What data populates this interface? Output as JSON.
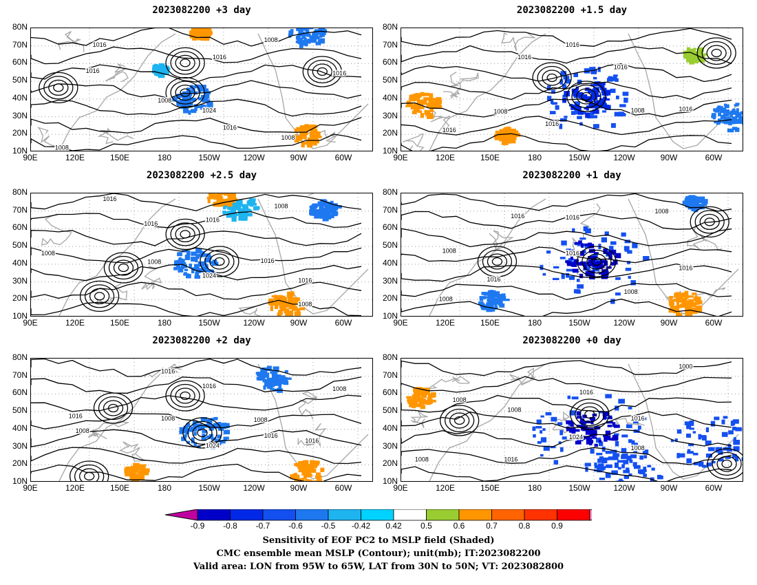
{
  "panels": [
    {
      "title": "2023082200  +3  day",
      "contours": [
        "1016",
        "1016",
        "1016",
        "1008",
        "1008",
        "1024",
        "1016",
        "1008",
        "1016",
        "1008"
      ]
    },
    {
      "title": "2023082200  +1.5  day",
      "contours": [
        "1016",
        "1016",
        "1016",
        "1016",
        "1008",
        "1016",
        "1008",
        "1016"
      ]
    },
    {
      "title": "2023082200  +2.5  day",
      "contours": [
        "1016",
        "1016",
        "1016",
        "1008",
        "1008",
        "1024",
        "1016",
        "1016",
        "1008",
        "1008"
      ]
    },
    {
      "title": "2023082200  +1  day",
      "contours": [
        "1016",
        "1016",
        "1008",
        "1008",
        "1016",
        "1016",
        "1008",
        "1008",
        "1016"
      ]
    },
    {
      "title": "2023082200  +2  day",
      "contours": [
        "1016",
        "1016",
        "1016",
        "1008",
        "1008",
        "1024",
        "1016",
        "1008",
        "1016",
        "1008"
      ]
    },
    {
      "title": "2023082200  +0  day",
      "contours": [
        "1000",
        "1008",
        "1008",
        "1016",
        "1016",
        "1024",
        "1008",
        "1016",
        "1008"
      ]
    }
  ],
  "lat_labels": [
    "80N",
    "70N",
    "60N",
    "50N",
    "40N",
    "30N",
    "20N",
    "10N"
  ],
  "lon_labels": [
    "90E",
    "120E",
    "150E",
    "180",
    "150W",
    "120W",
    "90W",
    "60W"
  ],
  "colorbar": {
    "labels": [
      "-0.9",
      "-0.8",
      "-0.7",
      "-0.6",
      "-0.5",
      "-0.42",
      "0.42",
      "0.5",
      "0.6",
      "0.7",
      "0.8",
      "0.9"
    ],
    "colors": [
      "#c000a0",
      "#0000c8",
      "#0028e6",
      "#1450f0",
      "#1e78f0",
      "#1eb4f0",
      "#00d2ff",
      "#ffffff",
      "#9acd32",
      "#ff9600",
      "#ff6400",
      "#ff3200",
      "#ff0000",
      "#ff96c8"
    ]
  },
  "captions": [
    "Sensitivity of EOF PC2 to MSLP field (Shaded)",
    "CMC ensemble mean MSLP (Contour); unit(mb); IT:2023082200",
    "Valid area: LON from 95W to 65W, LAT from 30N to 50N; VT: 2023082800"
  ]
}
